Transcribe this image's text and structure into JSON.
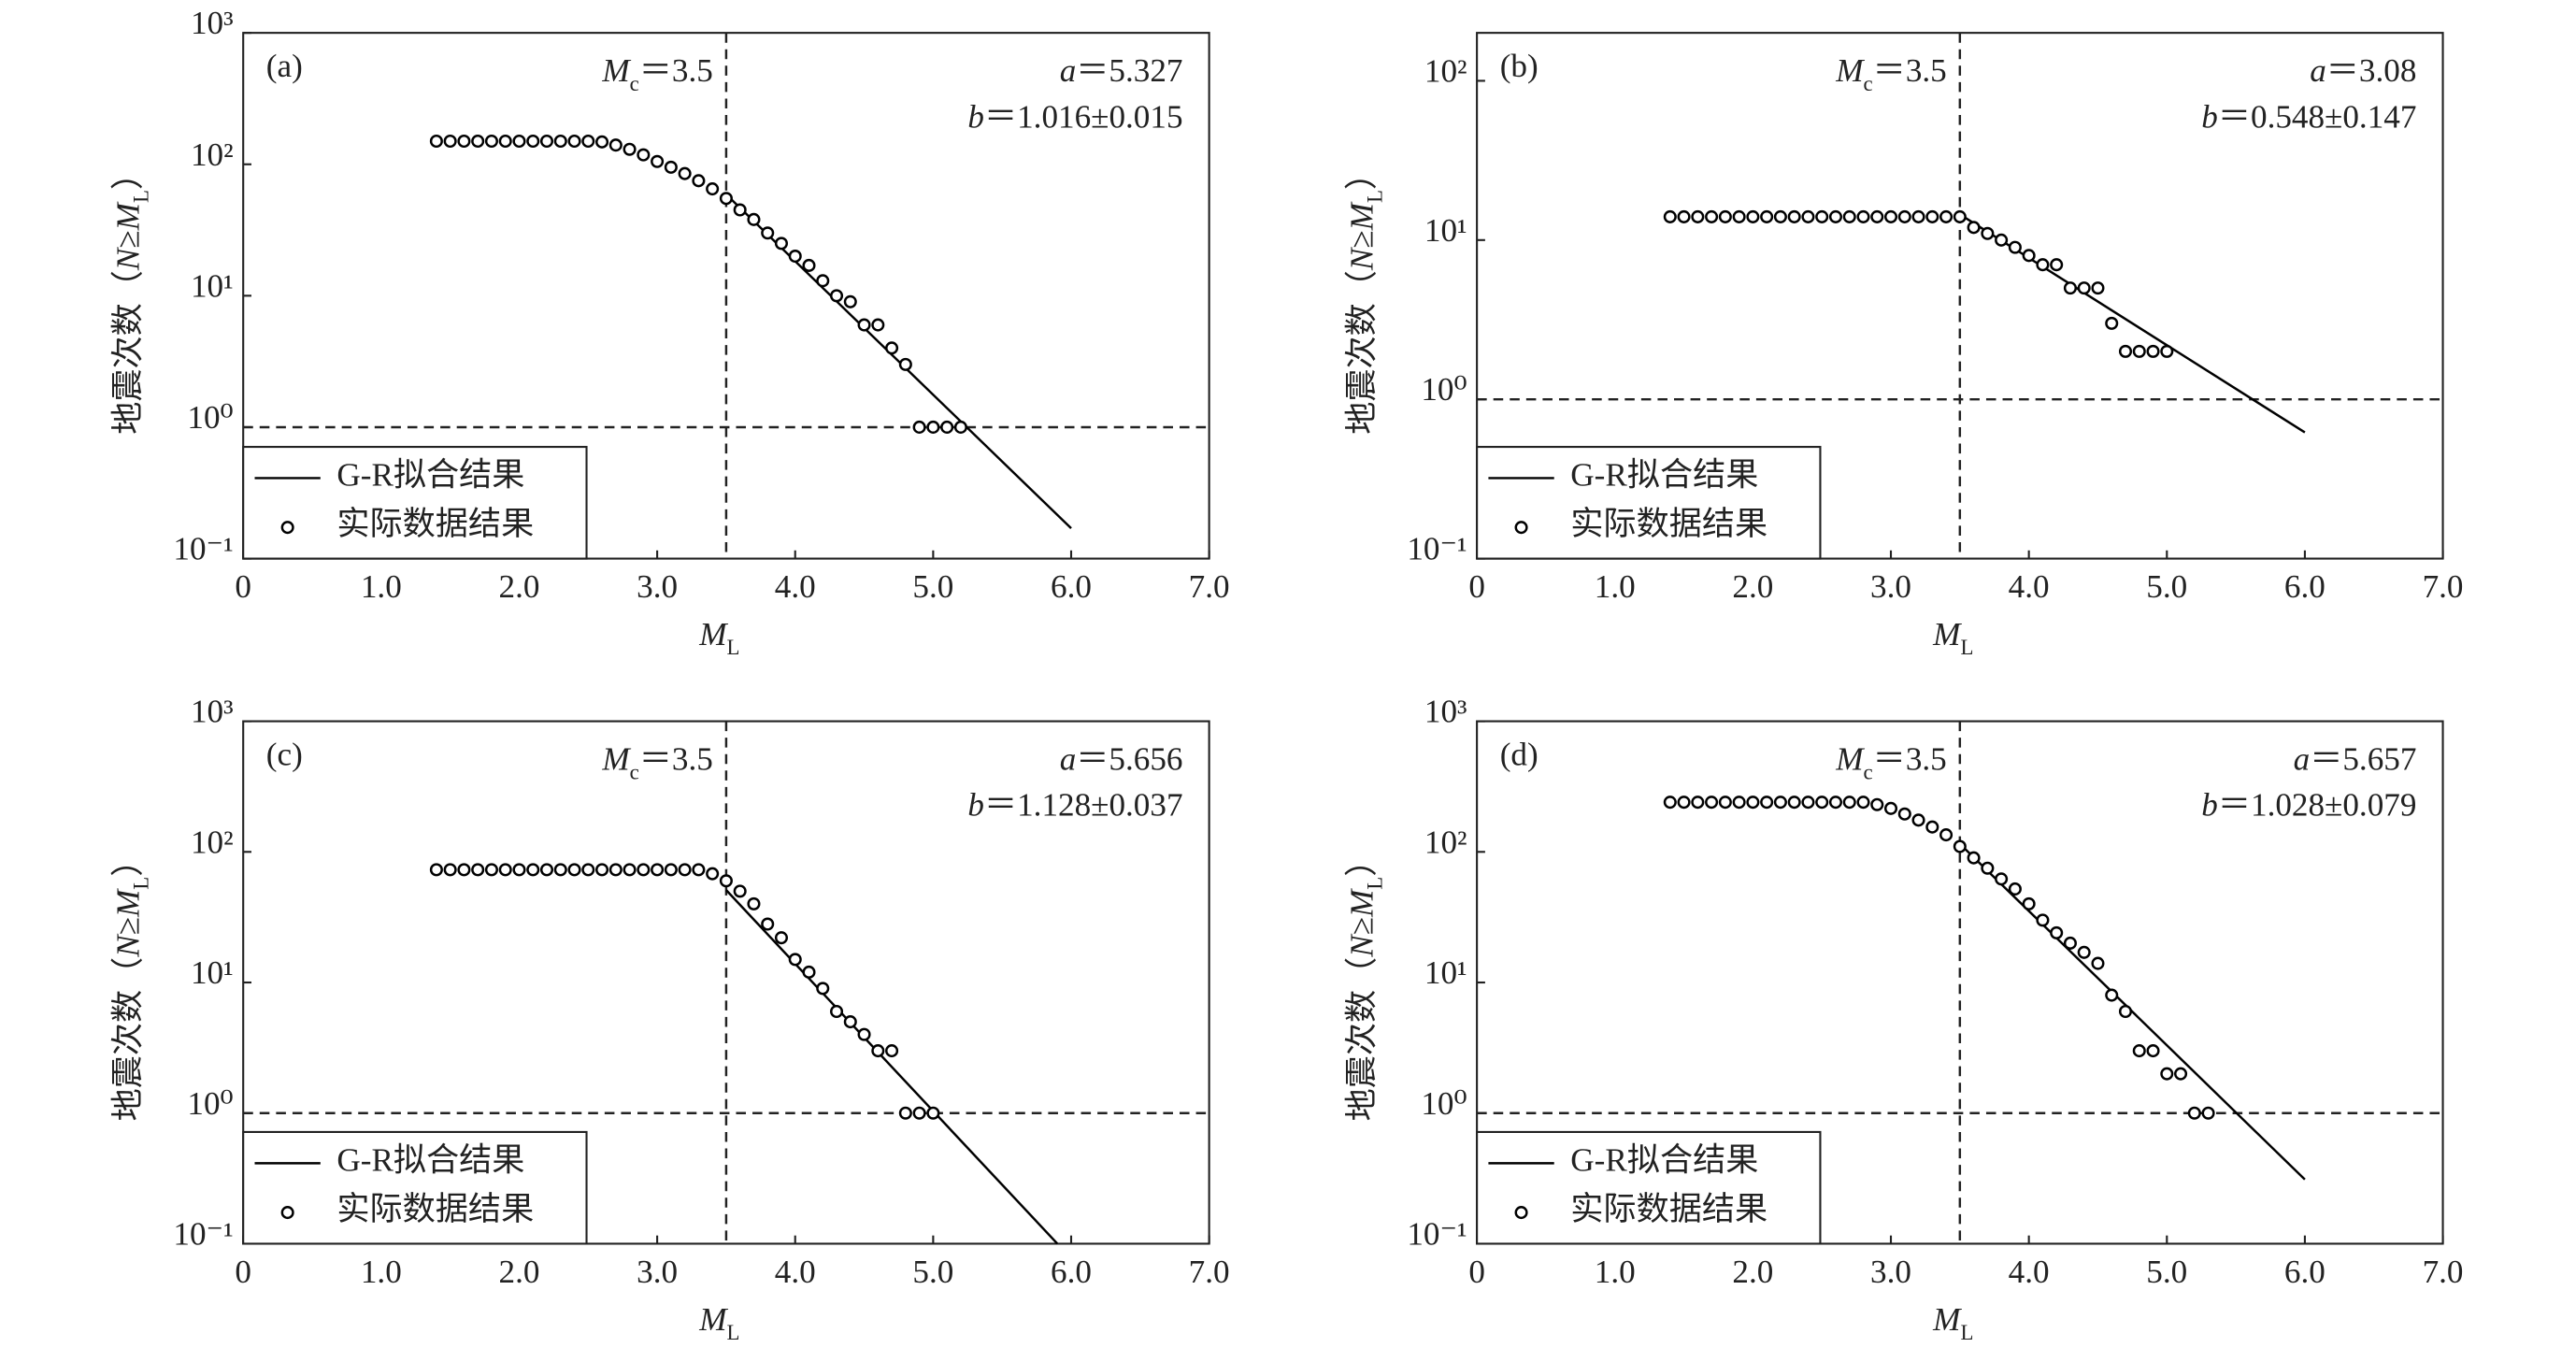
{
  "chart_data": [
    {
      "type": "scatter",
      "panel_label": "(a)",
      "log_y": true,
      "xlabel": [
        "M",
        "L"
      ],
      "ylabel": [
        "地震次数（",
        "N",
        "≥",
        "M",
        "L",
        "）"
      ],
      "xlim": [
        0,
        7
      ],
      "xticks": [
        0,
        {
          "value": 1,
          "label": "1.0"
        },
        {
          "value": 2,
          "label": "2.0"
        },
        {
          "value": 3,
          "label": "3.0"
        },
        {
          "value": 4,
          "label": "4.0"
        },
        {
          "value": 5,
          "label": "5.0"
        },
        {
          "value": 6,
          "label": "6.0"
        },
        {
          "value": 7,
          "label": "7.0"
        }
      ],
      "ylim": [
        0.1,
        1000
      ],
      "yticks": [
        {
          "value": 0.1,
          "label": "10⁻¹"
        },
        {
          "value": 1,
          "label": "10⁰"
        },
        {
          "value": 10,
          "label": "10¹"
        },
        {
          "value": 100,
          "label": "10²"
        },
        {
          "value": 1000,
          "label": "10³"
        }
      ],
      "mc_line": {
        "value": 3.5,
        "label": [
          "M",
          "c",
          "＝3.5"
        ]
      },
      "hline": 1,
      "a_label": [
        "a",
        "＝5.327"
      ],
      "b_label": [
        "b",
        "＝1.016±0.015"
      ],
      "series": [
        {
          "name": "G-R拟合结果",
          "mode": "line",
          "color": "#000000",
          "x": [
            3.5,
            6.0
          ],
          "values": [
            59,
            0.17
          ]
        },
        {
          "name": "实际数据结果",
          "mode": "markers",
          "color": "#000000",
          "x": [
            1.4,
            1.5,
            1.6,
            1.7,
            1.8,
            1.9,
            2.0,
            2.1,
            2.2,
            2.3,
            2.4,
            2.5,
            2.6,
            2.7,
            2.8,
            2.9,
            3.0,
            3.1,
            3.2,
            3.3,
            3.4,
            3.5,
            3.6,
            3.7,
            3.8,
            3.9,
            4.0,
            4.1,
            4.2,
            4.3,
            4.4,
            4.5,
            4.6,
            4.7,
            4.8,
            4.9,
            5.0,
            5.1,
            5.2
          ],
          "values": [
            150,
            150,
            150,
            150,
            150,
            150,
            150,
            150,
            150,
            150,
            150,
            150,
            148,
            140,
            130,
            118,
            105,
            95,
            85,
            75,
            65,
            55,
            45,
            38,
            30,
            25,
            20,
            17,
            13,
            10,
            9,
            6,
            6,
            4,
            3,
            1,
            1,
            1,
            1
          ]
        }
      ]
    },
    {
      "type": "scatter",
      "panel_label": "(b)",
      "log_y": true,
      "xlabel": [
        "M",
        "L"
      ],
      "ylabel": [
        "地震次数（",
        "N",
        "≥",
        "M",
        "L",
        "）"
      ],
      "xlim": [
        0,
        7
      ],
      "xticks": [
        0,
        {
          "value": 1,
          "label": "1.0"
        },
        {
          "value": 2,
          "label": "2.0"
        },
        {
          "value": 3,
          "label": "3.0"
        },
        {
          "value": 4,
          "label": "4.0"
        },
        {
          "value": 5,
          "label": "5.0"
        },
        {
          "value": 6,
          "label": "6.0"
        },
        {
          "value": 7,
          "label": "7.0"
        }
      ],
      "ylim": [
        0.1,
        200
      ],
      "yticks": [
        {
          "value": 0.1,
          "label": "10⁻¹"
        },
        {
          "value": 1,
          "label": "10⁰"
        },
        {
          "value": 10,
          "label": "10¹"
        },
        {
          "value": 100,
          "label": "10²"
        }
      ],
      "mc_line": {
        "value": 3.5,
        "label": [
          "M",
          "c",
          "＝3.5"
        ]
      },
      "hline": 1,
      "a_label": [
        "a",
        "＝3.08"
      ],
      "b_label": [
        "b",
        "＝0.548±0.147"
      ],
      "series": [
        {
          "name": "G-R拟合结果",
          "mode": "line",
          "color": "#000000",
          "x": [
            3.5,
            6.0
          ],
          "values": [
            14.5,
            0.62
          ]
        },
        {
          "name": "实际数据结果",
          "mode": "markers",
          "color": "#000000",
          "x": [
            1.4,
            1.5,
            1.6,
            1.7,
            1.8,
            1.9,
            2.0,
            2.1,
            2.2,
            2.3,
            2.4,
            2.5,
            2.6,
            2.7,
            2.8,
            2.9,
            3.0,
            3.1,
            3.2,
            3.3,
            3.4,
            3.5,
            3.6,
            3.7,
            3.8,
            3.9,
            4.0,
            4.1,
            4.2,
            4.3,
            4.4,
            4.5,
            4.6,
            4.7,
            4.8,
            4.9,
            5.0
          ],
          "values": [
            14,
            14,
            14,
            14,
            14,
            14,
            14,
            14,
            14,
            14,
            14,
            14,
            14,
            14,
            14,
            14,
            14,
            14,
            14,
            14,
            14,
            14,
            12,
            11,
            10,
            9,
            8,
            7,
            7,
            5,
            5,
            5,
            3,
            2,
            2,
            2,
            2
          ]
        }
      ]
    },
    {
      "type": "scatter",
      "panel_label": "(c)",
      "log_y": true,
      "xlabel": [
        "M",
        "L"
      ],
      "ylabel": [
        "地震次数（",
        "N",
        "≥",
        "M",
        "L",
        "）"
      ],
      "xlim": [
        0,
        7
      ],
      "xticks": [
        0,
        {
          "value": 1,
          "label": "1.0"
        },
        {
          "value": 2,
          "label": "2.0"
        },
        {
          "value": 3,
          "label": "3.0"
        },
        {
          "value": 4,
          "label": "4.0"
        },
        {
          "value": 5,
          "label": "5.0"
        },
        {
          "value": 6,
          "label": "6.0"
        },
        {
          "value": 7,
          "label": "7.0"
        }
      ],
      "ylim": [
        0.1,
        1000
      ],
      "yticks": [
        {
          "value": 0.1,
          "label": "10⁻¹"
        },
        {
          "value": 1,
          "label": "10⁰"
        },
        {
          "value": 10,
          "label": "10¹"
        },
        {
          "value": 100,
          "label": "10²"
        },
        {
          "value": 1000,
          "label": "10³"
        }
      ],
      "mc_line": {
        "value": 3.5,
        "label": [
          "M",
          "c",
          "＝3.5"
        ]
      },
      "hline": 1,
      "a_label": [
        "a",
        "＝5.656"
      ],
      "b_label": [
        "b",
        "＝1.128±0.037"
      ],
      "series": [
        {
          "name": "G-R拟合结果",
          "mode": "line",
          "color": "#000000",
          "x": [
            3.5,
            5.9
          ],
          "values": [
            51,
            0.1
          ]
        },
        {
          "name": "实际数据结果",
          "mode": "markers",
          "color": "#000000",
          "x": [
            1.4,
            1.5,
            1.6,
            1.7,
            1.8,
            1.9,
            2.0,
            2.1,
            2.2,
            2.3,
            2.4,
            2.5,
            2.6,
            2.7,
            2.8,
            2.9,
            3.0,
            3.1,
            3.2,
            3.3,
            3.4,
            3.5,
            3.6,
            3.7,
            3.8,
            3.9,
            4.0,
            4.1,
            4.2,
            4.3,
            4.4,
            4.5,
            4.6,
            4.7,
            4.8,
            4.9,
            5.0
          ],
          "values": [
            73,
            73,
            73,
            73,
            73,
            73,
            73,
            73,
            73,
            73,
            73,
            73,
            73,
            73,
            73,
            73,
            73,
            73,
            73,
            73,
            68,
            60,
            50,
            40,
            28,
            22,
            15,
            12,
            9,
            6,
            5,
            4,
            3,
            3,
            1,
            1,
            1
          ]
        }
      ]
    },
    {
      "type": "scatter",
      "panel_label": "(d)",
      "log_y": true,
      "xlabel": [
        "M",
        "L"
      ],
      "ylabel": [
        "地震次数（",
        "N",
        "≥",
        "M",
        "L",
        "）"
      ],
      "xlim": [
        0,
        7
      ],
      "xticks": [
        0,
        {
          "value": 1,
          "label": "1.0"
        },
        {
          "value": 2,
          "label": "2.0"
        },
        {
          "value": 3,
          "label": "3.0"
        },
        {
          "value": 4,
          "label": "4.0"
        },
        {
          "value": 5,
          "label": "5.0"
        },
        {
          "value": 6,
          "label": "6.0"
        },
        {
          "value": 7,
          "label": "7.0"
        }
      ],
      "ylim": [
        0.1,
        1000
      ],
      "yticks": [
        {
          "value": 0.1,
          "label": "10⁻¹"
        },
        {
          "value": 1,
          "label": "10⁰"
        },
        {
          "value": 10,
          "label": "10¹"
        },
        {
          "value": 100,
          "label": "10²"
        },
        {
          "value": 1000,
          "label": "10³"
        }
      ],
      "mc_line": {
        "value": 3.5,
        "label": [
          "M",
          "c",
          "＝3.5"
        ]
      },
      "hline": 1,
      "a_label": [
        "a",
        "＝5.657"
      ],
      "b_label": [
        "b",
        "＝1.028±0.079"
      ],
      "series": [
        {
          "name": "G-R拟合结果",
          "mode": "line",
          "color": "#000000",
          "x": [
            3.5,
            6.0
          ],
          "values": [
            115,
            0.31
          ]
        },
        {
          "name": "实际数据结果",
          "mode": "markers",
          "color": "#000000",
          "x": [
            1.4,
            1.5,
            1.6,
            1.7,
            1.8,
            1.9,
            2.0,
            2.1,
            2.2,
            2.3,
            2.4,
            2.5,
            2.6,
            2.7,
            2.8,
            2.9,
            3.0,
            3.1,
            3.2,
            3.3,
            3.4,
            3.5,
            3.6,
            3.7,
            3.8,
            3.9,
            4.0,
            4.1,
            4.2,
            4.3,
            4.4,
            4.5,
            4.6,
            4.7,
            4.8,
            4.9,
            5.0,
            5.1,
            5.2,
            5.3
          ],
          "values": [
            240,
            240,
            240,
            240,
            240,
            240,
            240,
            240,
            240,
            240,
            240,
            240,
            240,
            240,
            240,
            230,
            215,
            195,
            175,
            155,
            135,
            110,
            90,
            75,
            62,
            52,
            40,
            30,
            24,
            20,
            17,
            14,
            8,
            6,
            3,
            3,
            2,
            2,
            1,
            1
          ]
        }
      ]
    }
  ]
}
